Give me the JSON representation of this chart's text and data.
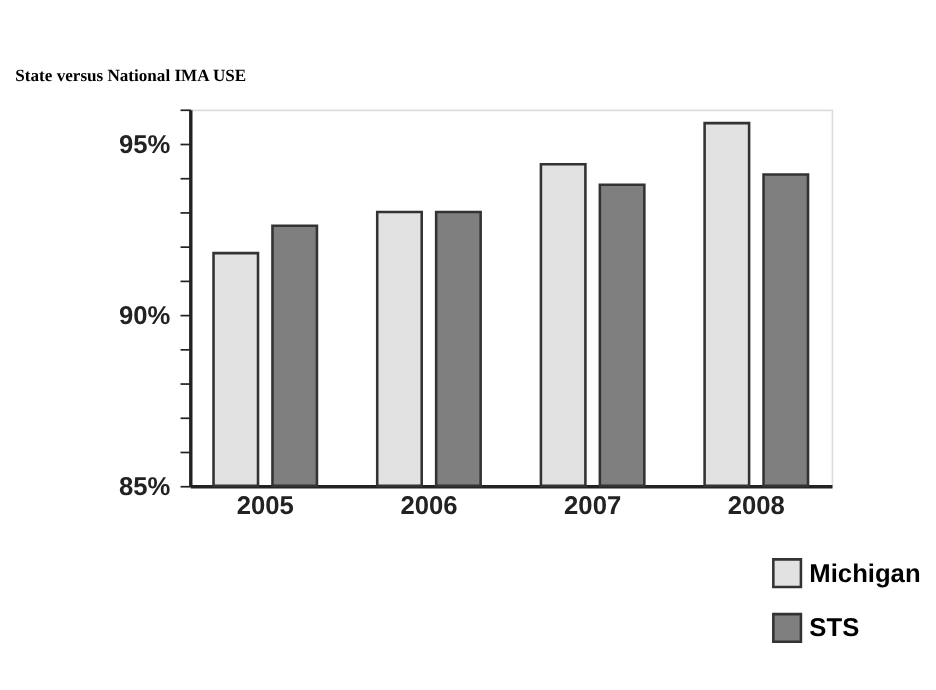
{
  "chart_data": {
    "type": "bar",
    "title": "State versus National IMA USE",
    "categories": [
      "2005",
      "2006",
      "2007",
      "2008"
    ],
    "series": [
      {
        "name": "Michigan",
        "color": "#e2e2e2",
        "values": [
          91.8,
          93.0,
          94.4,
          95.6
        ]
      },
      {
        "name": "STS",
        "color": "#7f7f7f",
        "values": [
          92.6,
          93.0,
          93.8,
          94.1
        ]
      }
    ],
    "ylim": [
      85,
      96
    ],
    "yticks": [
      {
        "value": 85,
        "label": "85%"
      },
      {
        "value": 86,
        "label": null
      },
      {
        "value": 87,
        "label": null
      },
      {
        "value": 88,
        "label": null
      },
      {
        "value": 89,
        "label": null
      },
      {
        "value": 90,
        "label": "90%"
      },
      {
        "value": 91,
        "label": null
      },
      {
        "value": 92,
        "label": null
      },
      {
        "value": 93,
        "label": null
      },
      {
        "value": 94,
        "label": null
      },
      {
        "value": 95,
        "label": "95%"
      },
      {
        "value": 96,
        "label": null
      }
    ],
    "grid": false,
    "legend": "bottom right"
  }
}
